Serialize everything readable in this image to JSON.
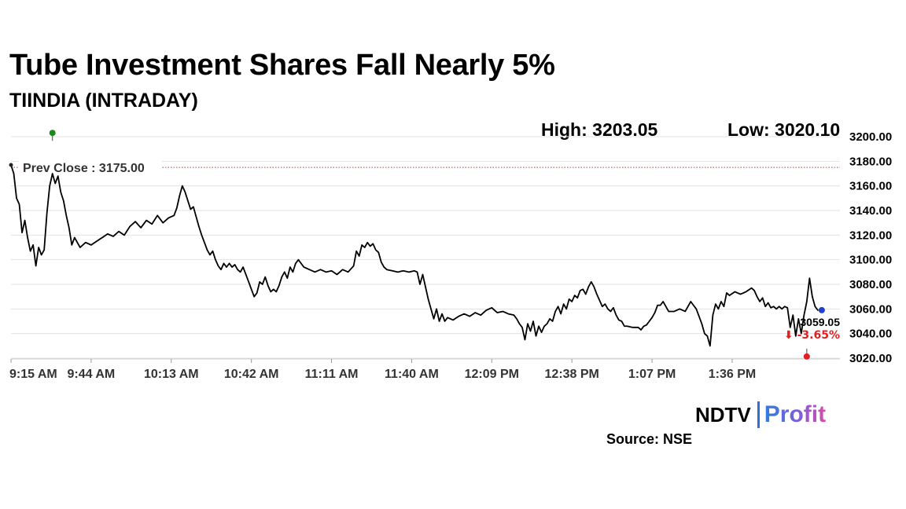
{
  "header": {
    "title": "Tube Investment Shares Fall Nearly 5%",
    "subtitle": "TIINDIA (INTRADAY)",
    "high_text": "High: 3203.05",
    "low_text": "Low: 3020.10"
  },
  "footer": {
    "logo_left": "NDTV",
    "logo_right": "Profit",
    "source": "Source: NSE"
  },
  "colors": {
    "line": "#000000",
    "prev_close_line": "#b04040",
    "high_marker": "#1a8a1a",
    "low_marker": "#e02020",
    "last_marker": "#1f3fd0",
    "change_text": "#e02020",
    "grid": "#e3e3e3"
  },
  "chart_data": {
    "type": "line",
    "title": "Tube Investment Shares Fall Nearly 5%",
    "subtitle": "TIINDIA (INTRADAY)",
    "xlabel": "",
    "ylabel": "",
    "x_tick_labels": [
      "9:15 AM",
      "9:44 AM",
      "10:13 AM",
      "10:42 AM",
      "11:11 AM",
      "11:40 AM",
      "12:09 PM",
      "12:38 PM",
      "1:07 PM",
      "1:36 PM"
    ],
    "x_range_minutes": [
      0,
      300
    ],
    "y_ticks": [
      3020,
      3040,
      3060,
      3080,
      3100,
      3120,
      3140,
      3160,
      3180,
      3200
    ],
    "y_tick_labels": [
      "3020.00",
      "3040.00",
      "3060.00",
      "3080.00",
      "3100.00",
      "3120.00",
      "3140.00",
      "3160.00",
      "3180.00",
      "3200.00"
    ],
    "ylim": [
      3020,
      3200
    ],
    "grid": "horizontal",
    "prev_close": {
      "label": "Prev Close : 3175.00",
      "value": 3175.0
    },
    "high": {
      "label": "High: 3203.05",
      "value": 3203.05,
      "minutes": 15
    },
    "low": {
      "label": "Low: 3020.10",
      "value": 3020.1,
      "minutes": 288
    },
    "last": {
      "price_label": "3059.05",
      "change_label": "-3.65%",
      "change_arrow": "⬇",
      "value": 3059.05,
      "minutes": 292
    },
    "series": [
      {
        "points": [
          [
            0,
            3177
          ],
          [
            1,
            3170
          ],
          [
            2,
            3150
          ],
          [
            3,
            3145
          ],
          [
            4,
            3122
          ],
          [
            5,
            3132
          ],
          [
            6,
            3118
          ],
          [
            7,
            3107
          ],
          [
            8,
            3112
          ],
          [
            9,
            3095
          ],
          [
            10,
            3110
          ],
          [
            11,
            3104
          ],
          [
            12,
            3108
          ],
          [
            13,
            3138
          ],
          [
            14,
            3160
          ],
          [
            15,
            3170
          ],
          [
            16,
            3162
          ],
          [
            17,
            3168
          ],
          [
            18,
            3155
          ],
          [
            19,
            3148
          ],
          [
            20,
            3136
          ],
          [
            21,
            3126
          ],
          [
            22,
            3112
          ],
          [
            23,
            3118
          ],
          [
            25,
            3110
          ],
          [
            27,
            3114
          ],
          [
            29,
            3112
          ],
          [
            31,
            3115
          ],
          [
            33,
            3118
          ],
          [
            35,
            3121
          ],
          [
            37,
            3119
          ],
          [
            39,
            3123
          ],
          [
            41,
            3120
          ],
          [
            43,
            3127
          ],
          [
            45,
            3131
          ],
          [
            47,
            3126
          ],
          [
            49,
            3132
          ],
          [
            51,
            3129
          ],
          [
            53,
            3136
          ],
          [
            55,
            3130
          ],
          [
            57,
            3134
          ],
          [
            59,
            3136
          ],
          [
            60,
            3142
          ],
          [
            61,
            3152
          ],
          [
            62,
            3160
          ],
          [
            63,
            3155
          ],
          [
            64,
            3148
          ],
          [
            65,
            3141
          ],
          [
            66,
            3143
          ],
          [
            67,
            3135
          ],
          [
            68,
            3127
          ],
          [
            69,
            3120
          ],
          [
            70,
            3114
          ],
          [
            71,
            3108
          ],
          [
            72,
            3104
          ],
          [
            73,
            3107
          ],
          [
            74,
            3100
          ],
          [
            75,
            3095
          ],
          [
            76,
            3092
          ],
          [
            77,
            3097
          ],
          [
            78,
            3094
          ],
          [
            79,
            3097
          ],
          [
            80,
            3094
          ],
          [
            81,
            3096
          ],
          [
            82,
            3092
          ],
          [
            83,
            3090
          ],
          [
            84,
            3094
          ],
          [
            85,
            3088
          ],
          [
            86,
            3082
          ],
          [
            87,
            3076
          ],
          [
            88,
            3070
          ],
          [
            89,
            3073
          ],
          [
            90,
            3082
          ],
          [
            91,
            3080
          ],
          [
            92,
            3086
          ],
          [
            93,
            3079
          ],
          [
            94,
            3074
          ],
          [
            95,
            3076
          ],
          [
            96,
            3074
          ],
          [
            97,
            3079
          ],
          [
            98,
            3086
          ],
          [
            99,
            3090
          ],
          [
            100,
            3085
          ],
          [
            101,
            3094
          ],
          [
            102,
            3090
          ],
          [
            103,
            3097
          ],
          [
            104,
            3100
          ],
          [
            105,
            3097
          ],
          [
            106,
            3094
          ],
          [
            108,
            3092
          ],
          [
            110,
            3090
          ],
          [
            112,
            3092
          ],
          [
            114,
            3090
          ],
          [
            116,
            3091
          ],
          [
            118,
            3088
          ],
          [
            120,
            3092
          ],
          [
            122,
            3090
          ],
          [
            124,
            3095
          ],
          [
            125,
            3107
          ],
          [
            126,
            3103
          ],
          [
            127,
            3112
          ],
          [
            128,
            3110
          ],
          [
            129,
            3114
          ],
          [
            130,
            3111
          ],
          [
            131,
            3113
          ],
          [
            132,
            3108
          ],
          [
            133,
            3106
          ],
          [
            134,
            3098
          ],
          [
            135,
            3094
          ],
          [
            136,
            3092
          ],
          [
            138,
            3091
          ],
          [
            140,
            3090
          ],
          [
            142,
            3091
          ],
          [
            144,
            3090
          ],
          [
            146,
            3091
          ],
          [
            147,
            3090
          ],
          [
            148,
            3080
          ],
          [
            149,
            3088
          ],
          [
            150,
            3078
          ],
          [
            151,
            3068
          ],
          [
            152,
            3060
          ],
          [
            153,
            3052
          ],
          [
            154,
            3060
          ],
          [
            155,
            3050
          ],
          [
            156,
            3056
          ],
          [
            157,
            3050
          ],
          [
            158,
            3053
          ],
          [
            160,
            3051
          ],
          [
            162,
            3054
          ],
          [
            164,
            3056
          ],
          [
            166,
            3054
          ],
          [
            168,
            3057
          ],
          [
            170,
            3055
          ],
          [
            172,
            3059
          ],
          [
            174,
            3061
          ],
          [
            176,
            3057
          ],
          [
            178,
            3058
          ],
          [
            180,
            3056
          ],
          [
            182,
            3055
          ],
          [
            183,
            3052
          ],
          [
            184,
            3048
          ],
          [
            185,
            3045
          ],
          [
            186,
            3035
          ],
          [
            187,
            3048
          ],
          [
            188,
            3042
          ],
          [
            189,
            3050
          ],
          [
            190,
            3038
          ],
          [
            191,
            3046
          ],
          [
            192,
            3041
          ],
          [
            193,
            3046
          ],
          [
            194,
            3048
          ],
          [
            195,
            3052
          ],
          [
            196,
            3050
          ],
          [
            197,
            3058
          ],
          [
            198,
            3062
          ],
          [
            199,
            3056
          ],
          [
            200,
            3064
          ],
          [
            201,
            3060
          ],
          [
            202,
            3068
          ],
          [
            203,
            3066
          ],
          [
            204,
            3071
          ],
          [
            205,
            3069
          ],
          [
            206,
            3075
          ],
          [
            207,
            3076
          ],
          [
            208,
            3072
          ],
          [
            209,
            3078
          ],
          [
            210,
            3082
          ],
          [
            211,
            3078
          ],
          [
            212,
            3072
          ],
          [
            213,
            3067
          ],
          [
            214,
            3062
          ],
          [
            215,
            3064
          ],
          [
            216,
            3060
          ],
          [
            217,
            3058
          ],
          [
            218,
            3061
          ],
          [
            219,
            3055
          ],
          [
            220,
            3051
          ],
          [
            221,
            3050
          ],
          [
            222,
            3046
          ],
          [
            223,
            3046
          ],
          [
            225,
            3045
          ],
          [
            227,
            3045
          ],
          [
            228,
            3043
          ],
          [
            229,
            3046
          ],
          [
            230,
            3047
          ],
          [
            231,
            3050
          ],
          [
            232,
            3053
          ],
          [
            233,
            3057
          ],
          [
            234,
            3063
          ],
          [
            235,
            3063
          ],
          [
            236,
            3066
          ],
          [
            237,
            3062
          ],
          [
            238,
            3058
          ],
          [
            240,
            3058
          ],
          [
            242,
            3060
          ],
          [
            244,
            3058
          ],
          [
            246,
            3066
          ],
          [
            247,
            3063
          ],
          [
            248,
            3060
          ],
          [
            249,
            3054
          ],
          [
            250,
            3048
          ],
          [
            251,
            3040
          ],
          [
            252,
            3038
          ],
          [
            253,
            3030
          ],
          [
            254,
            3055
          ],
          [
            255,
            3064
          ],
          [
            256,
            3060
          ],
          [
            257,
            3066
          ],
          [
            258,
            3062
          ],
          [
            259,
            3073
          ],
          [
            260,
            3071
          ],
          [
            262,
            3074
          ],
          [
            264,
            3072
          ],
          [
            266,
            3074
          ],
          [
            268,
            3077
          ],
          [
            269,
            3075
          ],
          [
            270,
            3070
          ],
          [
            271,
            3066
          ],
          [
            272,
            3069
          ],
          [
            273,
            3062
          ],
          [
            274,
            3065
          ],
          [
            275,
            3061
          ],
          [
            276,
            3062
          ],
          [
            277,
            3060
          ],
          [
            278,
            3062
          ],
          [
            279,
            3060
          ],
          [
            280,
            3062
          ],
          [
            281,
            3061
          ],
          [
            282,
            3045
          ],
          [
            283,
            3055
          ],
          [
            284,
            3038
          ],
          [
            285,
            3052
          ],
          [
            286,
            3040
          ],
          [
            287,
            3055
          ],
          [
            288,
            3066
          ],
          [
            289,
            3085
          ],
          [
            290,
            3070
          ],
          [
            291,
            3062
          ],
          [
            292,
            3059
          ]
        ]
      }
    ]
  }
}
